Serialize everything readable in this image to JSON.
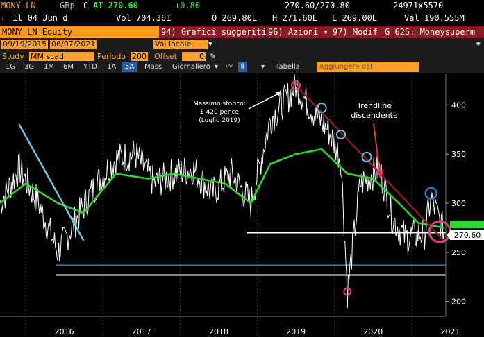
{
  "quote_bar": {
    "ticker": "MONY LN",
    "currency": "GBp",
    "flag": "C",
    "last": "AT 270.60",
    "change": "+0.80",
    "bid_ask": "270.60/270.80",
    "size": "24971x5570",
    "date_line": "Il 04 Jun d",
    "volume": "Vol 704,361",
    "open": "O 269.80L",
    "high": "H 271.60L",
    "low": "L 269.00L",
    "value": "Val 190.555M"
  },
  "toolbar": {
    "security": "MONY LN Equity",
    "menu1": "94) Grafici suggeriti",
    "menu2": "96) Azioni",
    "menu3": "97) Modif",
    "menu4": "G 625: Moneysuperm",
    "start_date": "09/19/2015",
    "end_date": "06/07/2021",
    "currency_sel": "Val locale",
    "study_label": "Study",
    "study_value": "MM scad",
    "period_label": "Periodo",
    "period_value": "200",
    "offset_label": "Offset",
    "offset_value": "0"
  },
  "ranges": [
    "1G",
    "3G",
    "1M",
    "6M",
    "YTD",
    "1A",
    "5A",
    "Mass",
    "Giornaliero"
  ],
  "selected_range": "5A",
  "table_label": "Tabella",
  "add_data_placeholder": "Aggiungere dati",
  "annotations": {
    "ath_line1": "Massimo storico:",
    "ath_line2": "£ 420 pence",
    "ath_line3": "(Luglio 2019)",
    "trend_line1": "Trendline",
    "trend_line2": "discendente"
  },
  "price_tag": "270.60",
  "colors": {
    "price": "#ffffff",
    "ma": "#2fd62f",
    "trend_up": "#6ec6e0",
    "trend_down": "#8b1c22",
    "support": "#3a6ea8",
    "circle_top": "#66c5dd",
    "circle_high": "#e0407a",
    "circle_blue": "#2e7bd6"
  },
  "chart_data": {
    "type": "line",
    "ylim": [
      185,
      432
    ],
    "yticks": [
      200,
      250,
      300,
      350,
      400
    ],
    "xticks": [
      "2016",
      "2017",
      "2018",
      "2019",
      "2020",
      "2021"
    ],
    "x_range": [
      "2015-09",
      "2021-06"
    ],
    "series": [
      {
        "name": "MONY LN",
        "x": [
          "2015-09",
          "2015-12",
          "2016-03",
          "2016-06",
          "2016-09",
          "2016-12",
          "2017-03",
          "2017-06",
          "2017-09",
          "2017-12",
          "2018-03",
          "2018-06",
          "2018-09",
          "2018-12",
          "2019-03",
          "2019-06",
          "2019-07",
          "2019-10",
          "2019-12",
          "2020-02",
          "2020-03",
          "2020-05",
          "2020-08",
          "2020-10",
          "2020-12",
          "2021-03",
          "2021-04",
          "2021-06"
        ],
        "values": [
          300,
          335,
          300,
          250,
          285,
          320,
          345,
          350,
          320,
          330,
          335,
          310,
          330,
          300,
          385,
          410,
          420,
          390,
          375,
          345,
          210,
          320,
          335,
          285,
          265,
          270,
          305,
          270.6
        ]
      },
      {
        "name": "MM scad 200",
        "x": [
          "2015-09",
          "2016-01",
          "2016-06",
          "2016-10",
          "2017-03",
          "2017-08",
          "2017-12",
          "2018-04",
          "2018-08",
          "2018-12",
          "2019-03",
          "2019-07",
          "2019-11",
          "2020-03",
          "2020-07",
          "2020-11",
          "2021-02",
          "2021-06"
        ],
        "values": [
          300,
          320,
          300,
          290,
          330,
          325,
          330,
          325,
          320,
          300,
          340,
          350,
          355,
          330,
          325,
          300,
          280,
          275
        ]
      }
    ],
    "annotations": [
      "Massimo storico: £ 420 pence (Luglio 2019)",
      "Trendline discendente"
    ]
  }
}
